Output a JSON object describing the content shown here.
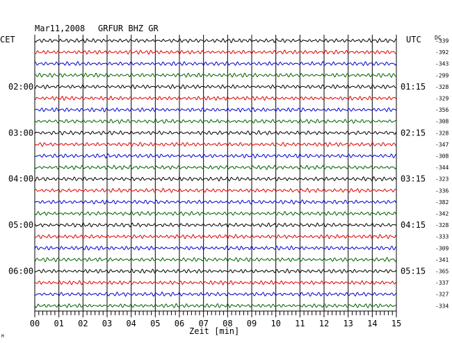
{
  "header": {
    "date": "Mar11,2008",
    "station": "GRFUR BHZ GR"
  },
  "labels": {
    "left_zone": "CET",
    "right_zone": "UTC",
    "dc_header": "DC",
    "x_axis_title": "Zeit [min]",
    "corner_mark": "M"
  },
  "chart_data": {
    "type": "line",
    "title": "Mar11,2008   GRFUR BHZ GR",
    "xlabel": "Zeit [min]",
    "xlim": [
      0,
      15
    ],
    "x_ticks": [
      "00",
      "01",
      "02",
      "03",
      "04",
      "05",
      "06",
      "07",
      "08",
      "09",
      "10",
      "11",
      "12",
      "13",
      "14",
      "15"
    ],
    "trace_count": 24,
    "trace_colors_cycle": [
      "#000000",
      "#e00000",
      "#0000d0",
      "#006000"
    ],
    "left_time_labels": [
      {
        "trace": 4,
        "label": "02:00"
      },
      {
        "trace": 8,
        "label": "03:00"
      },
      {
        "trace": 12,
        "label": "04:00"
      },
      {
        "trace": 16,
        "label": "05:00"
      },
      {
        "trace": 20,
        "label": "06:00"
      }
    ],
    "right_time_labels": [
      {
        "trace": 4,
        "label": "01:15"
      },
      {
        "trace": 8,
        "label": "02:15"
      },
      {
        "trace": 12,
        "label": "03:15"
      },
      {
        "trace": 16,
        "label": "04:15"
      },
      {
        "trace": 20,
        "label": "05:15"
      }
    ],
    "dc_offsets": [
      "-339",
      "-392",
      "-343",
      "-299",
      "-328",
      "-329",
      "-356",
      "-308",
      "-328",
      "-347",
      "-308",
      "-344",
      "-323",
      "-336",
      "-382",
      "-342",
      "-328",
      "-333",
      "-309",
      "-341",
      "-365",
      "-337",
      "-327",
      "-334"
    ],
    "grid": true
  }
}
